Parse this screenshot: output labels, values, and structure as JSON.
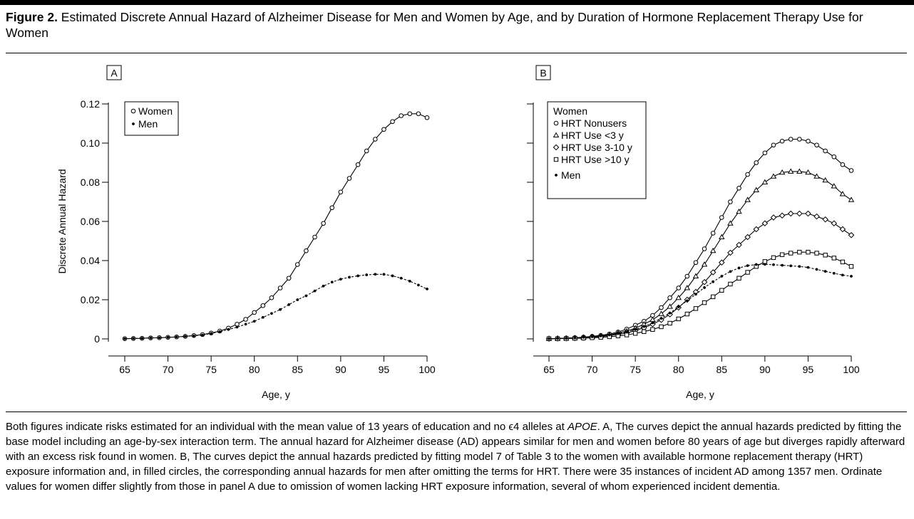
{
  "figure": {
    "label": "Figure 2.",
    "title": " Estimated Discrete Annual Hazard of Alzheimer Disease for Men and Women by Age, and by Duration of Hormone Replacement Therapy Use for Women",
    "caption": {
      "p1": "Both figures indicate risks estimated for an individual with the mean value of 13 years of education and no ",
      "epsilon": "ϵ4",
      "p2": " alleles at ",
      "apoe": "APOE",
      "p3": ". A, The curves depict the annual hazards predicted by fitting the base model including an age-by-sex interaction term. The annual hazard for Alzheimer disease (AD) appears similar for men and women before 80 years of age but diverges rapidly afterward with an excess risk found in women. B, The curves depict the annual hazards predicted by fitting model 7 of Table 3 to the women with available hormone replacement therapy (HRT) exposure information and, in filled circles, the corresponding annual hazards for men after omitting the terms for HRT. There were 35 instances of incident AD among 1357 men. Ordinate values for women differ slightly from those in panel A due to omission of women lacking HRT exposure information, several of whom experienced incident dementia."
    }
  },
  "chart_data": [
    {
      "type": "line",
      "panel": "A",
      "xlabel": "Age, y",
      "ylabel": "Discrete Annual Hazard",
      "xlim": [
        65,
        100
      ],
      "ylim": [
        0,
        0.12
      ],
      "xticks": [
        "65",
        "70",
        "75",
        "80",
        "85",
        "90",
        "95",
        "100"
      ],
      "yticks": [
        "0",
        "0.02",
        "0.04",
        "0.06",
        "0.08",
        "0.10",
        "0.12"
      ],
      "legend": {
        "title": "",
        "placement": "top-left"
      },
      "x": [
        65,
        66,
        67,
        68,
        69,
        70,
        71,
        72,
        73,
        74,
        75,
        76,
        77,
        78,
        79,
        80,
        81,
        82,
        83,
        84,
        85,
        86,
        87,
        88,
        89,
        90,
        91,
        92,
        93,
        94,
        95,
        96,
        97,
        98,
        99,
        100
      ],
      "series": [
        {
          "name": "Women",
          "marker": "circle-open",
          "dashed": false,
          "values": [
            0.0001,
            0.0002,
            0.0003,
            0.0005,
            0.0006,
            0.0008,
            0.001,
            0.0013,
            0.0017,
            0.0022,
            0.003,
            0.004,
            0.0055,
            0.0075,
            0.01,
            0.0135,
            0.017,
            0.021,
            0.026,
            0.031,
            0.038,
            0.045,
            0.052,
            0.059,
            0.067,
            0.075,
            0.082,
            0.089,
            0.096,
            0.102,
            0.107,
            0.111,
            0.114,
            0.115,
            0.115,
            0.113
          ]
        },
        {
          "name": "Men",
          "marker": "dot",
          "dashed": true,
          "values": [
            0.0001,
            0.0002,
            0.0003,
            0.0005,
            0.0006,
            0.0008,
            0.001,
            0.0013,
            0.0016,
            0.002,
            0.0028,
            0.0037,
            0.0048,
            0.006,
            0.0075,
            0.009,
            0.011,
            0.013,
            0.015,
            0.0175,
            0.02,
            0.022,
            0.0245,
            0.027,
            0.029,
            0.0305,
            0.0315,
            0.0322,
            0.0327,
            0.033,
            0.033,
            0.0322,
            0.031,
            0.0295,
            0.0275,
            0.0255
          ]
        }
      ]
    },
    {
      "type": "line",
      "panel": "B",
      "xlabel": "Age, y",
      "ylabel": "",
      "xlim": [
        65,
        100
      ],
      "ylim": [
        0,
        0.12
      ],
      "xticks": [
        "65",
        "70",
        "75",
        "80",
        "85",
        "90",
        "95",
        "100"
      ],
      "yticks": [],
      "legend": {
        "title": "Women",
        "placement": "top-left"
      },
      "x": [
        65,
        66,
        67,
        68,
        69,
        70,
        71,
        72,
        73,
        74,
        75,
        76,
        77,
        78,
        79,
        80,
        81,
        82,
        83,
        84,
        85,
        86,
        87,
        88,
        89,
        90,
        91,
        92,
        93,
        94,
        95,
        96,
        97,
        98,
        99,
        100
      ],
      "series": [
        {
          "name": "HRT Nonusers",
          "marker": "circle-open",
          "dashed": false,
          "values": [
            0.0001,
            0.0002,
            0.0004,
            0.0006,
            0.0009,
            0.0013,
            0.0018,
            0.0025,
            0.0035,
            0.005,
            0.007,
            0.009,
            0.012,
            0.016,
            0.021,
            0.026,
            0.032,
            0.039,
            0.046,
            0.054,
            0.062,
            0.07,
            0.077,
            0.084,
            0.09,
            0.095,
            0.099,
            0.101,
            0.102,
            0.102,
            0.101,
            0.099,
            0.096,
            0.093,
            0.089,
            0.086
          ]
        },
        {
          "name": "HRT Use <3 y",
          "marker": "triangle-open",
          "dashed": false,
          "values": [
            0.0001,
            0.0002,
            0.0003,
            0.0005,
            0.0008,
            0.0011,
            0.0015,
            0.0021,
            0.003,
            0.004,
            0.0055,
            0.0075,
            0.0098,
            0.0128,
            0.0165,
            0.021,
            0.026,
            0.032,
            0.038,
            0.045,
            0.052,
            0.059,
            0.065,
            0.071,
            0.076,
            0.08,
            0.083,
            0.085,
            0.0855,
            0.0855,
            0.085,
            0.083,
            0.081,
            0.078,
            0.074,
            0.071
          ]
        },
        {
          "name": "HRT Use 3-10 y",
          "marker": "diamond-open",
          "dashed": false,
          "values": [
            0.0001,
            0.0002,
            0.0003,
            0.0004,
            0.0006,
            0.0009,
            0.0012,
            0.0017,
            0.0023,
            0.003,
            0.0042,
            0.0057,
            0.0075,
            0.0097,
            0.0125,
            0.016,
            0.02,
            0.024,
            0.029,
            0.034,
            0.039,
            0.044,
            0.048,
            0.052,
            0.056,
            0.059,
            0.062,
            0.063,
            0.064,
            0.064,
            0.064,
            0.0625,
            0.061,
            0.059,
            0.056,
            0.053
          ]
        },
        {
          "name": "HRT Use >10 y",
          "marker": "square-open",
          "dashed": false,
          "values": [
            0.0001,
            0.0001,
            0.0002,
            0.0003,
            0.0004,
            0.0006,
            0.0008,
            0.0011,
            0.0015,
            0.002,
            0.0028,
            0.0037,
            0.0048,
            0.0062,
            0.008,
            0.0102,
            0.0127,
            0.0155,
            0.0185,
            0.0215,
            0.0248,
            0.028,
            0.031,
            0.034,
            0.037,
            0.0395,
            0.0415,
            0.043,
            0.0438,
            0.0443,
            0.0443,
            0.0438,
            0.0428,
            0.0413,
            0.0393,
            0.037
          ]
        },
        {
          "name": "Men",
          "marker": "dot",
          "dashed": true,
          "values": [
            0.0001,
            0.0002,
            0.0003,
            0.0005,
            0.0008,
            0.0011,
            0.0015,
            0.002,
            0.0027,
            0.0036,
            0.0048,
            0.0063,
            0.0082,
            0.0105,
            0.0132,
            0.0163,
            0.0195,
            0.0228,
            0.0262,
            0.0292,
            0.032,
            0.0344,
            0.0362,
            0.0374,
            0.038,
            0.0381,
            0.0379,
            0.0376,
            0.0373,
            0.037,
            0.0365,
            0.0355,
            0.0345,
            0.0335,
            0.0326,
            0.032
          ]
        }
      ]
    }
  ]
}
